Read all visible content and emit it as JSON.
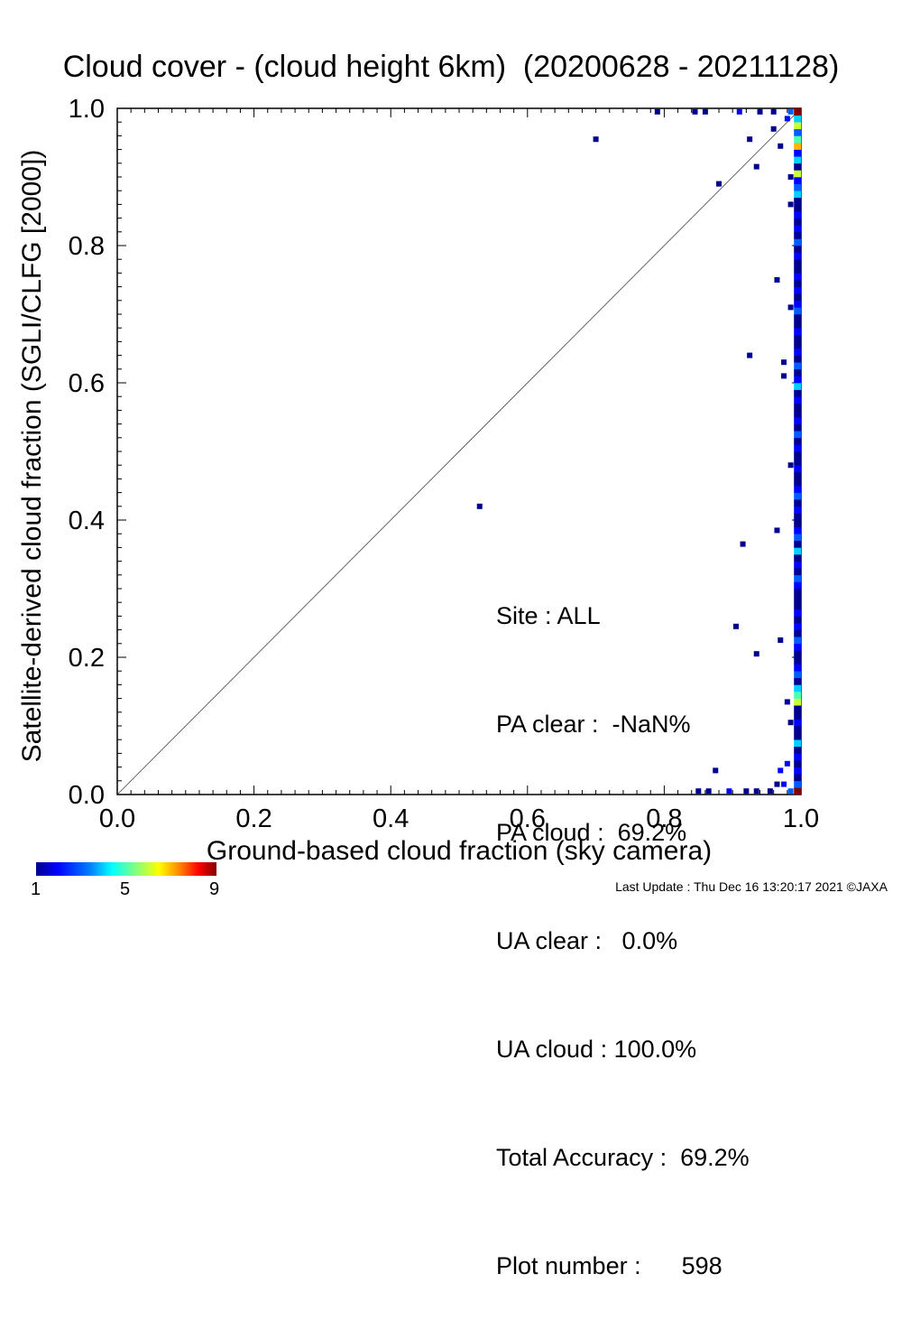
{
  "chart_data": {
    "type": "heatmap",
    "title": "Cloud cover - (cloud height 6km)  (20200628 - 20211128)",
    "xlabel": "Ground-based cloud fraction (sky camera)",
    "ylabel": "Satellite-derived cloud fraction (SGLI/CLFG [2000])",
    "xlim": [
      0.0,
      1.0
    ],
    "ylim": [
      0.0,
      1.0
    ],
    "xticks": [
      "0.0",
      "0.2",
      "0.4",
      "0.6",
      "0.8",
      "1.0"
    ],
    "yticks": [
      "0.0",
      "0.2",
      "0.4",
      "0.6",
      "0.8",
      "1.0"
    ],
    "grid": false,
    "reference_line": "1:1 diagonal",
    "colorbar": {
      "min_label": "1",
      "mid_label": "5",
      "max_label": "9"
    },
    "points": [
      {
        "x": 0.53,
        "y": 0.42,
        "count": 1
      },
      {
        "x": 0.7,
        "y": 0.955,
        "count": 1
      },
      {
        "x": 0.79,
        "y": 0.995,
        "count": 1
      },
      {
        "x": 0.845,
        "y": 0.995,
        "count": 1
      },
      {
        "x": 0.86,
        "y": 0.995,
        "count": 1
      },
      {
        "x": 0.88,
        "y": 0.89,
        "count": 1
      },
      {
        "x": 0.91,
        "y": 0.995,
        "count": 2
      },
      {
        "x": 0.925,
        "y": 0.955,
        "count": 1
      },
      {
        "x": 0.935,
        "y": 0.915,
        "count": 1
      },
      {
        "x": 0.94,
        "y": 0.995,
        "count": 1
      },
      {
        "x": 0.96,
        "y": 0.97,
        "count": 1
      },
      {
        "x": 0.96,
        "y": 0.995,
        "count": 1
      },
      {
        "x": 0.965,
        "y": 0.75,
        "count": 1
      },
      {
        "x": 0.97,
        "y": 0.945,
        "count": 1
      },
      {
        "x": 0.975,
        "y": 0.63,
        "count": 1
      },
      {
        "x": 0.975,
        "y": 0.61,
        "count": 1
      },
      {
        "x": 0.98,
        "y": 0.985,
        "count": 2
      },
      {
        "x": 0.985,
        "y": 0.9,
        "count": 1
      },
      {
        "x": 0.985,
        "y": 0.86,
        "count": 1
      },
      {
        "x": 0.985,
        "y": 0.71,
        "count": 1
      },
      {
        "x": 0.985,
        "y": 0.48,
        "count": 1
      },
      {
        "x": 0.925,
        "y": 0.64,
        "count": 1
      },
      {
        "x": 0.915,
        "y": 0.365,
        "count": 1
      },
      {
        "x": 0.965,
        "y": 0.385,
        "count": 1
      },
      {
        "x": 0.905,
        "y": 0.245,
        "count": 1
      },
      {
        "x": 0.935,
        "y": 0.205,
        "count": 1
      },
      {
        "x": 0.97,
        "y": 0.225,
        "count": 1
      },
      {
        "x": 0.98,
        "y": 0.135,
        "count": 1
      },
      {
        "x": 0.985,
        "y": 0.105,
        "count": 1
      },
      {
        "x": 0.875,
        "y": 0.035,
        "count": 1
      },
      {
        "x": 0.97,
        "y": 0.035,
        "count": 2
      },
      {
        "x": 0.98,
        "y": 0.045,
        "count": 2
      },
      {
        "x": 0.965,
        "y": 0.015,
        "count": 1
      },
      {
        "x": 0.975,
        "y": 0.015,
        "count": 2
      },
      {
        "x": 0.85,
        "y": 0.005,
        "count": 1
      },
      {
        "x": 0.865,
        "y": 0.005,
        "count": 1
      },
      {
        "x": 0.895,
        "y": 0.005,
        "count": 2
      },
      {
        "x": 0.92,
        "y": 0.005,
        "count": 1
      },
      {
        "x": 0.935,
        "y": 0.005,
        "count": 1
      },
      {
        "x": 0.955,
        "y": 0.005,
        "count": 1
      },
      {
        "x": 0.985,
        "y": 0.005,
        "count": 3
      },
      {
        "x": 0.985,
        "y": 0.995,
        "count": 3
      }
    ],
    "column_x1": {
      "x": 0.995,
      "counts_bottom_to_top": [
        9,
        3,
        1,
        2,
        1,
        2,
        1,
        4,
        1,
        1,
        2,
        1,
        1,
        6,
        5,
        4,
        1,
        3,
        2,
        1,
        1,
        2,
        3,
        1,
        2,
        1,
        2,
        1,
        1,
        1,
        2,
        3,
        1,
        2,
        1,
        4,
        1,
        3,
        2,
        1,
        1,
        2,
        1,
        3,
        2,
        1,
        1,
        2,
        1,
        1,
        2,
        1,
        3,
        1,
        2,
        1,
        1,
        2,
        1,
        4,
        2,
        1,
        3,
        1,
        2,
        1,
        1,
        2,
        1,
        1,
        3,
        2,
        1,
        2,
        1,
        2,
        1,
        1,
        2,
        1,
        3,
        1,
        2,
        1,
        2,
        1,
        1,
        4,
        3,
        2,
        6,
        1,
        4,
        2,
        7,
        5,
        3,
        6,
        4,
        9
      ]
    }
  },
  "stats": {
    "site": "Site : ALL",
    "pa_clear": "PA clear :  -NaN%",
    "pa_cloud": "PA cloud :  69.2%",
    "ua_clear": "UA clear :   0.0%",
    "ua_cloud": "UA cloud : 100.0%",
    "total_accuracy": "Total Accuracy :  69.2%",
    "plot_number": "Plot number :      598"
  },
  "footer": "Last Update : Thu Dec 16 13:20:17 2021  ©JAXA"
}
